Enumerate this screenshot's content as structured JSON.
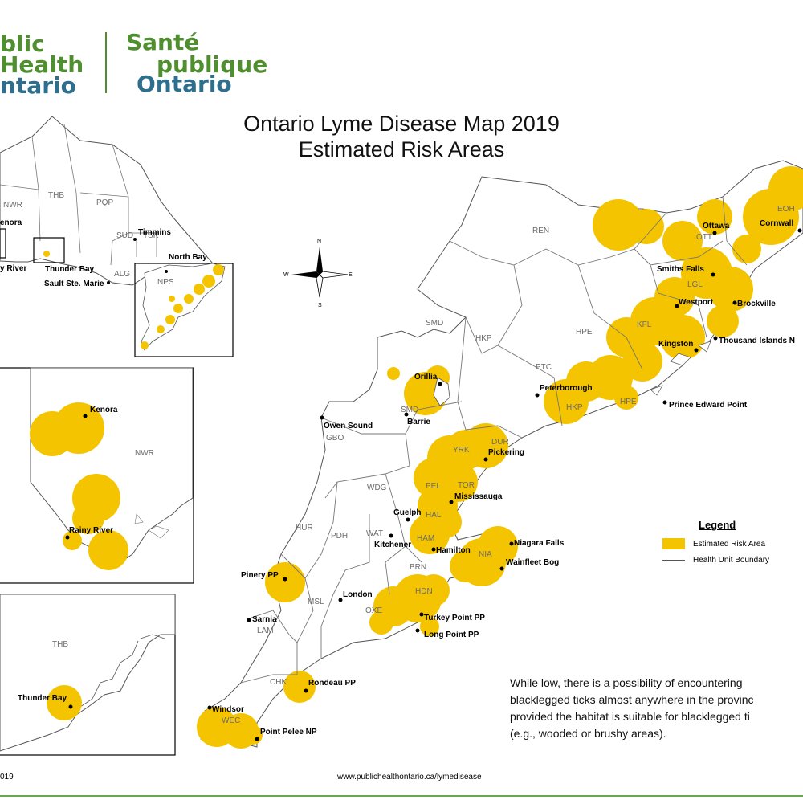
{
  "logo": {
    "en_line1": "blic",
    "en_line2": "Health",
    "en_line3": "ntario",
    "fr_line1": "Santé",
    "fr_line2": "publique",
    "fr_line3": "Ontario",
    "green": "#4f8f2f",
    "blue": "#2e6f8e"
  },
  "title": {
    "line1": "Ontario Lyme Disease Map 2019",
    "line2": "Estimated Risk Areas"
  },
  "colors": {
    "risk_fill": "#f5c400",
    "boundary": "#555555",
    "rule": "#6aa84f"
  },
  "compass": {
    "n": "N",
    "s": "S",
    "e": "E",
    "w": "W"
  },
  "inset_overview": {
    "codes": [
      "NWR",
      "THB",
      "PQP",
      "SUD",
      "TSK",
      "ALG",
      "NPS"
    ],
    "places": [
      "Timmins",
      "North Bay",
      "Thunder Bay",
      "Sault Ste. Marie",
      "enora",
      "y River"
    ]
  },
  "inset_kenora": {
    "codes": [
      "NWR"
    ],
    "places": [
      "Kenora",
      "Rainy River"
    ]
  },
  "inset_thunder_bay": {
    "codes": [
      "THB"
    ],
    "places": [
      "Thunder Bay"
    ]
  },
  "main_map": {
    "codes": [
      "REN",
      "EOH",
      "OTT",
      "LGL",
      "KFL",
      "HPE",
      "HPE",
      "HKP",
      "HKP",
      "PTC",
      "SMD",
      "SMD",
      "DUR",
      "YRK",
      "TOR",
      "PEL",
      "HAL",
      "HAM",
      "NIA",
      "BRN",
      "HDN",
      "OXE",
      "WDG",
      "WAT",
      "PDH",
      "HUR",
      "MSL",
      "LAM",
      "CHK",
      "WEC",
      "GBO"
    ],
    "places": [
      "Ottawa",
      "Cornwall",
      "Smiths Falls",
      "Westport",
      "Brockville",
      "Kingston",
      "Thousand Islands N",
      "Peterborough",
      "Prince Edward Point",
      "Orillia",
      "Barrie",
      "Owen Sound",
      "Pickering",
      "Mississauga",
      "Guelph",
      "Kitchener",
      "Hamilton",
      "Niagara Falls",
      "Wainfleet Bog",
      "Pinery PP",
      "London",
      "Sarnia",
      "Turkey Point PP",
      "Long Point PP",
      "Rondeau PP",
      "Windsor",
      "Point Pelee NP"
    ]
  },
  "legend": {
    "title": "Legend",
    "risk_label": "Estimated Risk Area",
    "boundary_label": "Health Unit Boundary"
  },
  "note": {
    "line1": "While low, there is a possibility of encountering",
    "line2": "blacklegged ticks almost anywhere in the provinc",
    "line3": "provided the habitat is suitable for blacklegged ti",
    "line4": "(e.g., wooded or brushy areas)."
  },
  "footer": {
    "copyright": "019",
    "url": "www.publichealthontario.ca/lymedisease"
  }
}
